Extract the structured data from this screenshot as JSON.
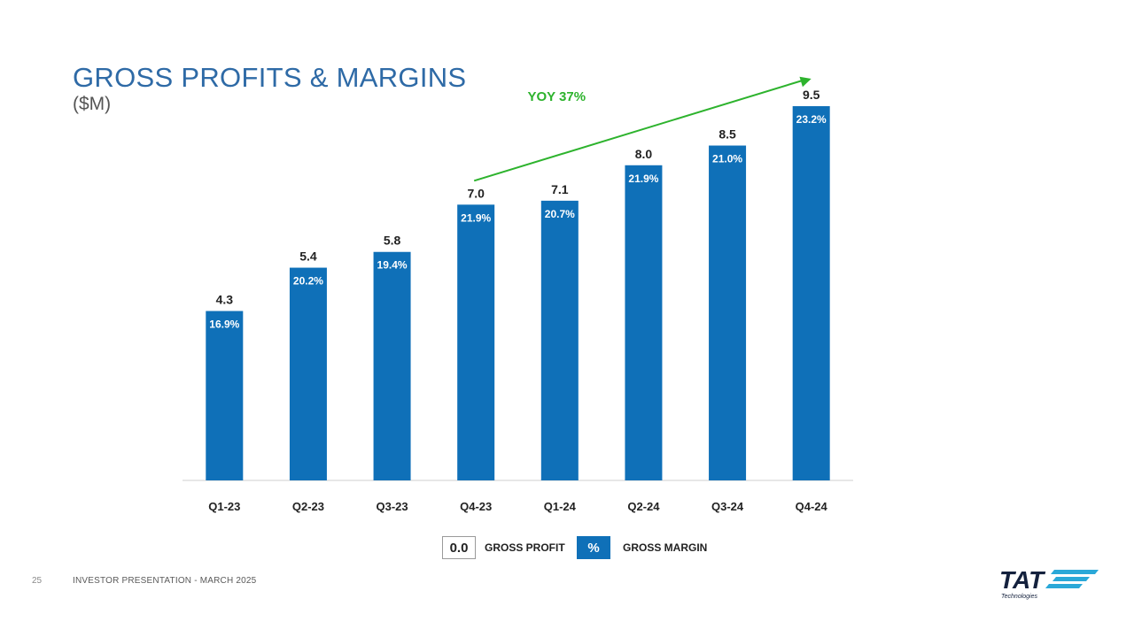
{
  "page": {
    "title": "GROSS PROFITS & MARGINS",
    "subtitle": "($M)",
    "page_number": "25",
    "footer": "INVESTOR PRESENTATION  -  MARCH 2025",
    "logo_text": "TAT",
    "logo_subtext": "Technologies"
  },
  "legend": {
    "value_sample": "0.0",
    "value_label": "GROSS PROFIT",
    "pct_sample": "%",
    "pct_label": "GROSS MARGIN"
  },
  "colors": {
    "bar": "#0f70b8",
    "title": "#2e6aa6",
    "trend": "#2db32d"
  },
  "chart_data": {
    "type": "bar",
    "categories": [
      "Q1-23",
      "Q2-23",
      "Q3-23",
      "Q4-23",
      "Q1-24",
      "Q2-24",
      "Q3-24",
      "Q4-24"
    ],
    "series": [
      {
        "values": [
          4.3,
          5.4,
          5.8,
          7.0,
          7.1,
          8.0,
          8.5,
          9.5
        ]
      }
    ],
    "value_labels": [
      "4.3",
      "5.4",
      "5.8",
      "7.0",
      "7.1",
      "8.0",
      "8.5",
      "9.5"
    ],
    "margin_labels": [
      "16.9%",
      "20.2%",
      "19.4%",
      "21.9%",
      "20.7%",
      "21.9%",
      "21.0%",
      "23.2%"
    ],
    "annotation": {
      "text": "YOY 37%",
      "from": "Q4-23",
      "to": "Q4-24"
    },
    "ylim": [
      0,
      9.5
    ],
    "grid": false,
    "legend_position": "bottom"
  }
}
